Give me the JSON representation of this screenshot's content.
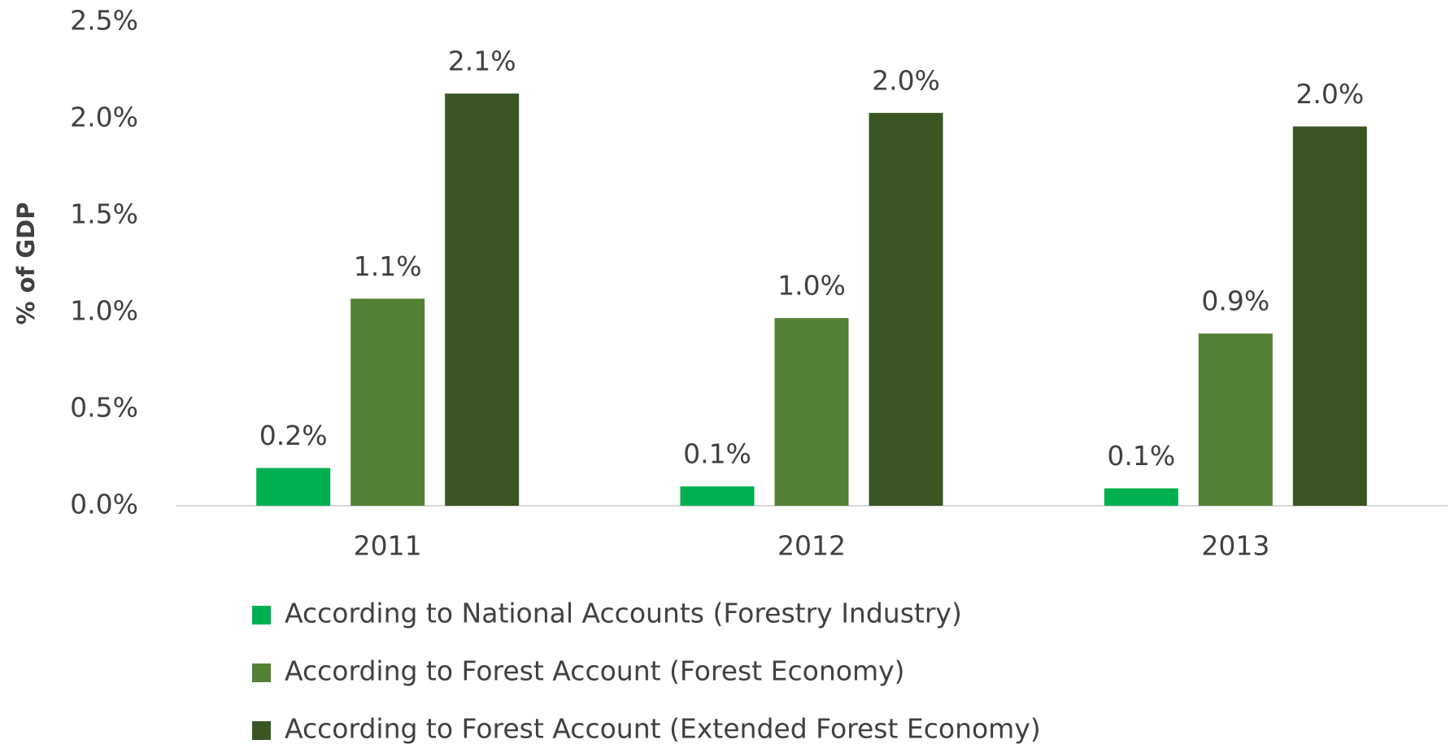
{
  "chart_data": {
    "type": "bar",
    "y_label": "% of GDP",
    "categories": [
      "2011",
      "2012",
      "2013"
    ],
    "series": [
      {
        "name": "According to National Accounts (Forestry Industry)",
        "color": "#00b050",
        "values": [
          0.195,
          0.1,
          0.09
        ],
        "value_labels": [
          "0.2%",
          "0.1%",
          "0.1%"
        ]
      },
      {
        "name": "According to Forest Account (Forest Economy)",
        "color": "#538135",
        "values": [
          1.07,
          0.97,
          0.89
        ],
        "value_labels": [
          "1.1%",
          "1.0%",
          "0.9%"
        ]
      },
      {
        "name": "According to Forest Account (Extended Forest Economy)",
        "color": "#3a5723",
        "values": [
          2.13,
          2.03,
          1.96
        ],
        "value_labels": [
          "2.1%",
          "2.0%",
          "2.0%"
        ]
      }
    ],
    "ylim": [
      0,
      2.5
    ],
    "yticks": [
      {
        "value": 0,
        "label": "0.0%"
      },
      {
        "value": 0.5,
        "label": "0.5%"
      },
      {
        "value": 1,
        "label": "1.0%"
      },
      {
        "value": 1.5,
        "label": "1.5%"
      },
      {
        "value": 2,
        "label": "2.0%"
      },
      {
        "value": 2.5,
        "label": "2.5%"
      }
    ],
    "grid": false,
    "legend": "bottom"
  }
}
